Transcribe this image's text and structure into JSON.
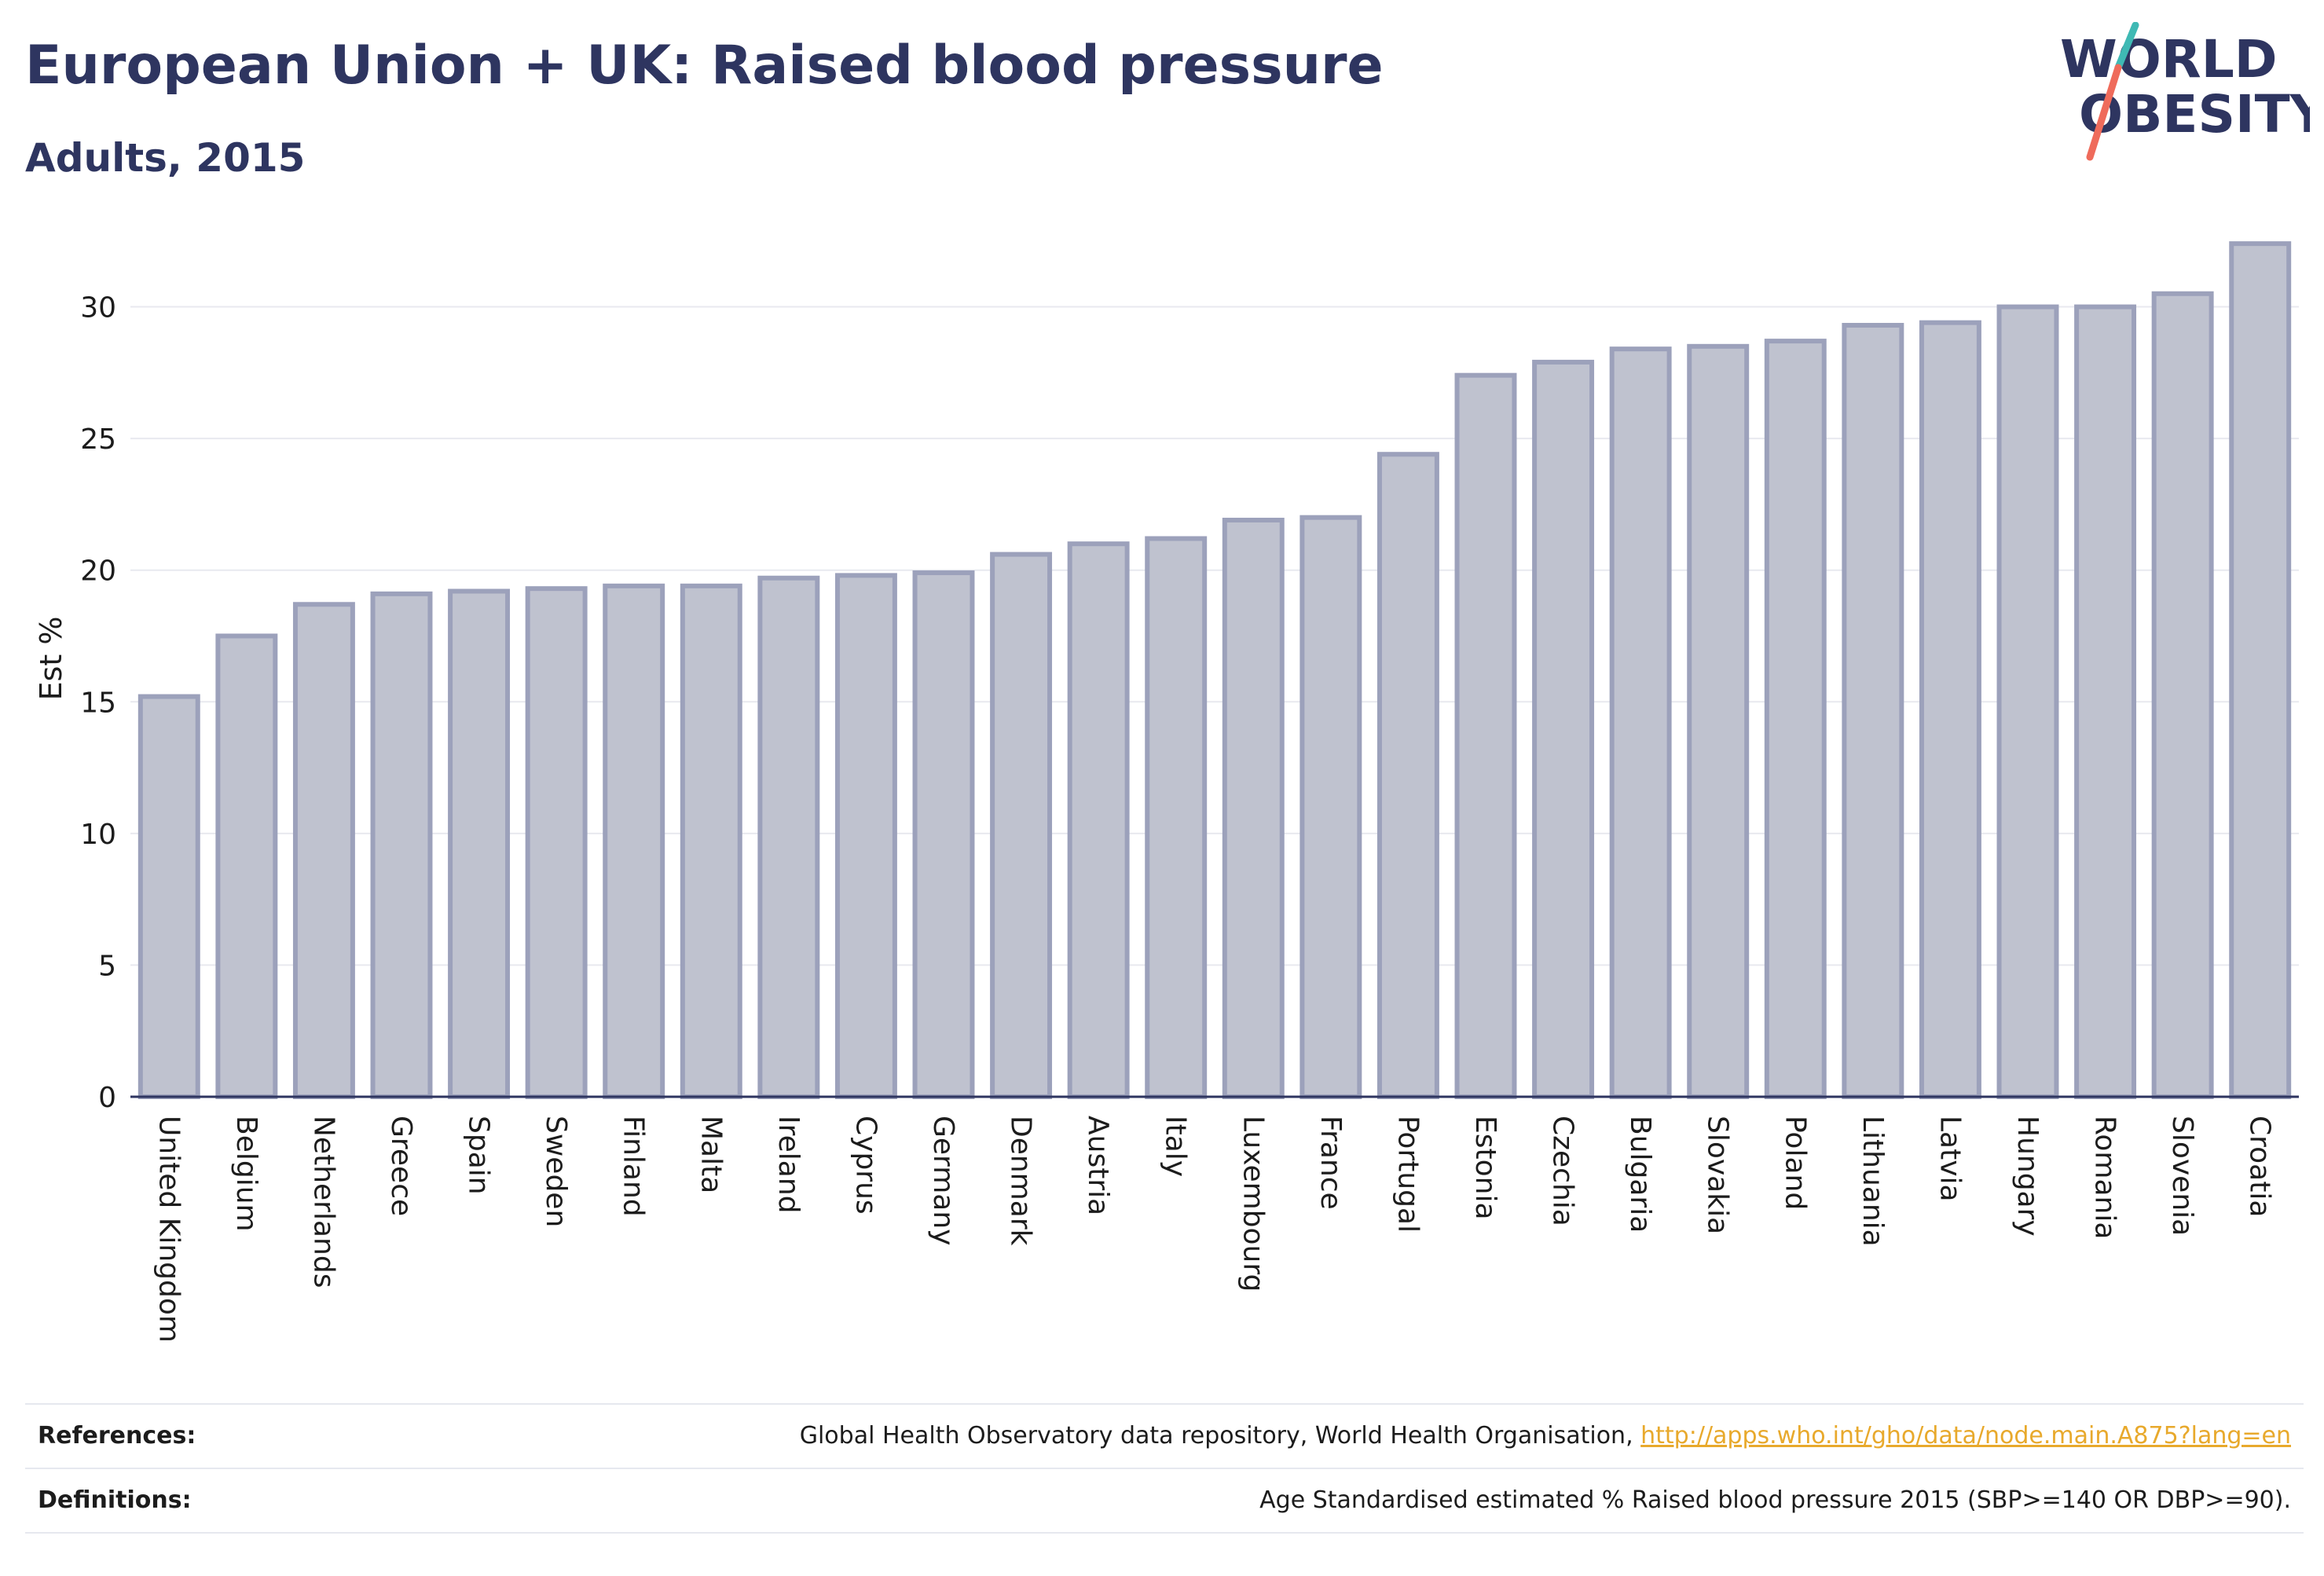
{
  "header": {
    "title": "European Union + UK: Raised blood pressure",
    "subtitle": "Adults, 2015"
  },
  "logo": {
    "line1": "WORLD",
    "line2": "OBESITY",
    "colors": {
      "text": "#2e3560",
      "slash_top": "#3fb9b4",
      "slash_bottom": "#ef6b5b"
    }
  },
  "chart_data": {
    "type": "bar",
    "categories": [
      "United Kingdom",
      "Belgium",
      "Netherlands",
      "Greece",
      "Spain",
      "Sweden",
      "Finland",
      "Malta",
      "Ireland",
      "Cyprus",
      "Germany",
      "Denmark",
      "Austria",
      "Italy",
      "Luxembourg",
      "France",
      "Portugal",
      "Estonia",
      "Czechia",
      "Bulgaria",
      "Slovakia",
      "Poland",
      "Lithuania",
      "Latvia",
      "Hungary",
      "Romania",
      "Slovenia",
      "Croatia"
    ],
    "values": [
      15.2,
      17.5,
      18.7,
      19.1,
      19.2,
      19.3,
      19.4,
      19.4,
      19.7,
      19.8,
      19.9,
      20.6,
      21.0,
      21.2,
      21.9,
      22.0,
      24.4,
      27.4,
      27.9,
      28.4,
      28.5,
      28.7,
      29.3,
      29.4,
      30.0,
      30.0,
      30.5,
      32.4
    ],
    "ylabel": "Est %",
    "ylim": [
      0,
      33
    ],
    "yticks": [
      0,
      5,
      10,
      15,
      20,
      25,
      30
    ],
    "grid": true,
    "colors": {
      "bar_fill": "#bfc2cf",
      "bar_stroke": "#9ca1bb",
      "axis": "#2e3560",
      "grid": "#e8e9ef"
    }
  },
  "references": {
    "references_label": "References:",
    "references_text": "Global Health Observatory data repository, World Health Organisation, ",
    "references_link": "http://apps.who.int/gho/data/node.main.A875?lang=en",
    "definitions_label": "Definitions:",
    "definitions_text": "Age Standardised estimated % Raised blood pressure 2015 (SBP>=140 OR DBP>=90)."
  }
}
